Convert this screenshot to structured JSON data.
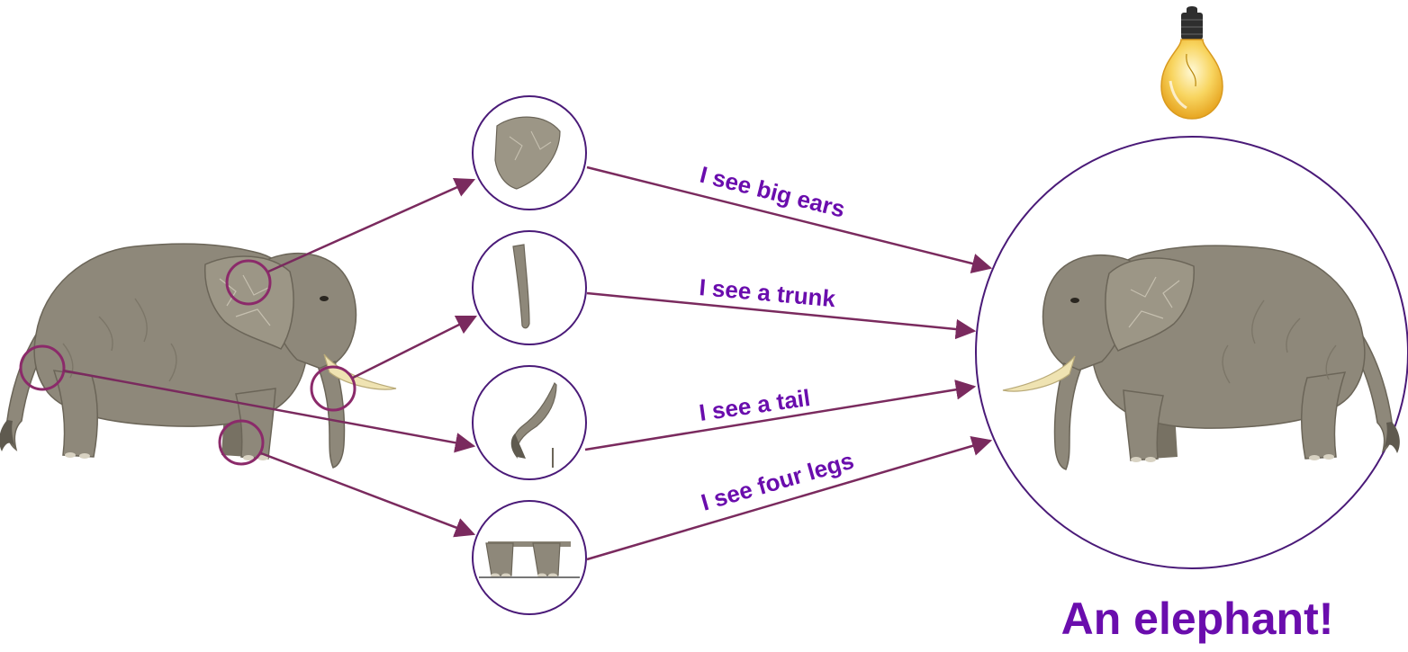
{
  "colors": {
    "arrow": "#7a2a5e",
    "circle_outline": "#4a1a78",
    "highlight_circle": "#8b2a6a",
    "caption": "#6a0dad",
    "elephant_body": "#8e887a",
    "elephant_shadow": "#6b6558",
    "elephant_light": "#b3ad9f",
    "tusk": "#efe3b2",
    "bulb_glass": "#f8d560",
    "bulb_base": "#2e2e2e"
  },
  "observations": [
    {
      "id": "ears",
      "label": "I see big ears"
    },
    {
      "id": "trunk",
      "label": "I see a trunk"
    },
    {
      "id": "tail",
      "label": "I see a tail"
    },
    {
      "id": "legs",
      "label": "I see four legs"
    }
  ],
  "conclusion": "An elephant!",
  "icons": {
    "idea": "lightbulb-icon",
    "subject": "elephant-illustration"
  }
}
